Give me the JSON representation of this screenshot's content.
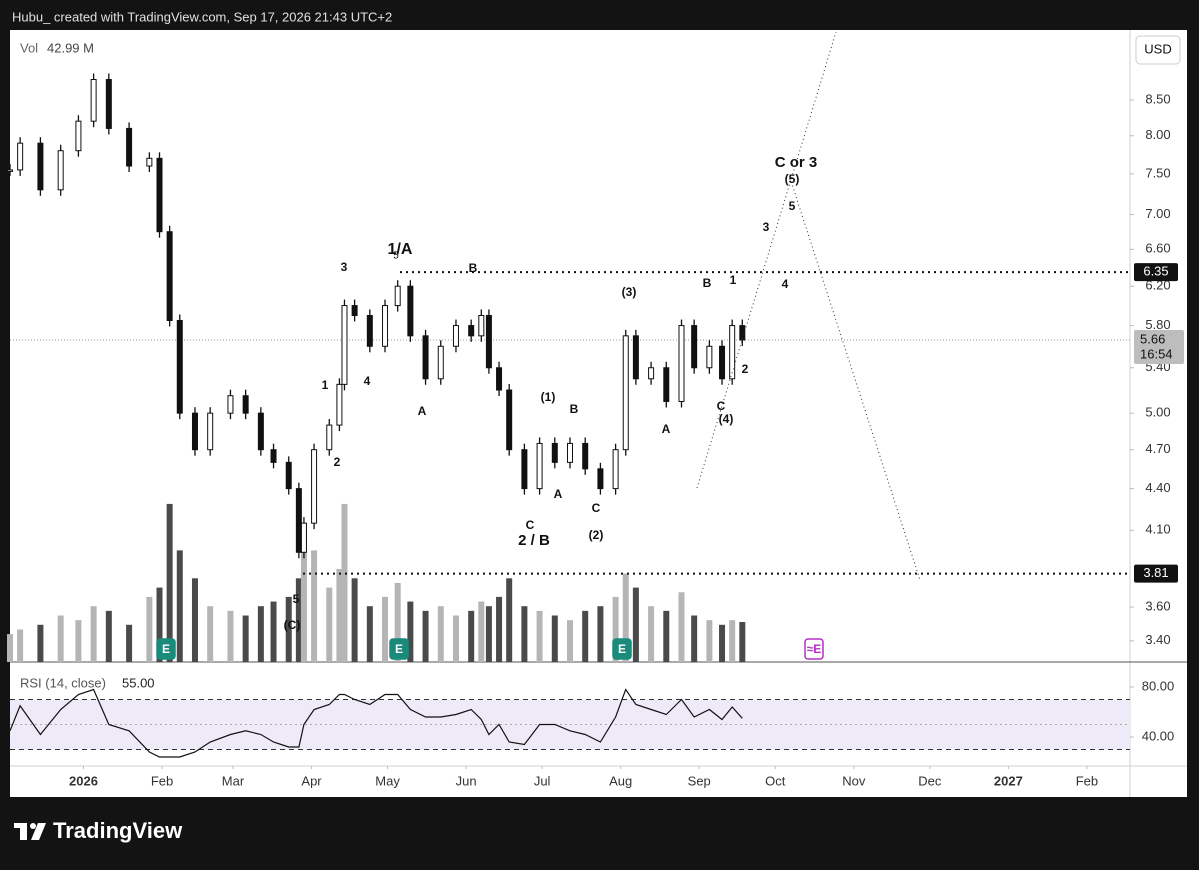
{
  "header": {
    "text": "Hubu_ created with TradingView.com, Sep 17, 2026 21:43 UTC+2"
  },
  "chart_data": {
    "type": "ohlc-bars",
    "currency": "USD",
    "x": [
      -29,
      -25,
      -17,
      -9,
      -2,
      4,
      10,
      18,
      26,
      30,
      34,
      38,
      44,
      50,
      58,
      64,
      70,
      75,
      81,
      85,
      87,
      91,
      97,
      101,
      103,
      107,
      113,
      119,
      124,
      129,
      135,
      141,
      147,
      153,
      157,
      160,
      164,
      168,
      174,
      180,
      186,
      192,
      198,
      204,
      210,
      214,
      218,
      224,
      230,
      236,
      241,
      247,
      252,
      256,
      260
    ],
    "close": [
      7.55,
      7.9,
      7.3,
      7.8,
      8.2,
      8.8,
      8.1,
      7.6,
      7.7,
      6.8,
      5.85,
      5.0,
      4.7,
      5.0,
      5.15,
      5.0,
      4.7,
      4.6,
      4.4,
      3.95,
      4.15,
      4.7,
      4.9,
      5.25,
      6.0,
      5.9,
      5.6,
      6.0,
      6.2,
      5.7,
      5.3,
      5.6,
      5.8,
      5.7,
      5.9,
      5.4,
      5.2,
      4.7,
      4.4,
      4.75,
      4.6,
      4.75,
      4.55,
      4.4,
      4.7,
      5.7,
      5.3,
      5.4,
      5.1,
      5.8,
      5.4,
      5.6,
      5.3,
      5.8,
      5.66
    ],
    "volume": [
      30,
      35,
      40,
      50,
      45,
      60,
      55,
      40,
      70,
      80,
      170,
      120,
      90,
      60,
      55,
      50,
      60,
      65,
      70,
      90,
      150,
      120,
      80,
      100,
      170,
      90,
      60,
      70,
      85,
      65,
      55,
      60,
      50,
      55,
      65,
      60,
      70,
      90,
      60,
      55,
      50,
      45,
      55,
      60,
      70,
      95,
      80,
      60,
      55,
      75,
      50,
      45,
      40,
      45,
      42.99
    ],
    "volume_label": "Vol",
    "volume_value_label": "42.99 M",
    "xlim": [
      -29,
      413
    ],
    "xticks": [
      {
        "value": 0,
        "label": "2026"
      },
      {
        "value": 31,
        "label": "Feb"
      },
      {
        "value": 59,
        "label": "Mar"
      },
      {
        "value": 90,
        "label": "Apr"
      },
      {
        "value": 120,
        "label": "May"
      },
      {
        "value": 151,
        "label": "Jun"
      },
      {
        "value": 181,
        "label": "Jul"
      },
      {
        "value": 212,
        "label": "Aug"
      },
      {
        "value": 243,
        "label": "Sep"
      },
      {
        "value": 273,
        "label": "Oct"
      },
      {
        "value": 304,
        "label": "Nov"
      },
      {
        "value": 334,
        "label": "Dec"
      },
      {
        "value": 365,
        "label": "2027"
      },
      {
        "value": 396,
        "label": "Feb"
      }
    ],
    "ylim": [
      3.28,
      9.57
    ],
    "log_scale": true,
    "yticks": [
      {
        "value": 8.5,
        "label": "8.50"
      },
      {
        "value": 8,
        "label": "8.00"
      },
      {
        "value": 7.5,
        "label": "7.50"
      },
      {
        "value": 7,
        "label": "7.00"
      },
      {
        "value": 6.6,
        "label": "6.60"
      },
      {
        "value": 6.2,
        "label": "6.20"
      },
      {
        "value": 5.8,
        "label": "5.80"
      },
      {
        "value": 5.4,
        "label": "5.40"
      },
      {
        "value": 5,
        "label": "5.00"
      },
      {
        "value": 4.7,
        "label": "4.70"
      },
      {
        "value": 4.4,
        "label": "4.40"
      },
      {
        "value": 4.1,
        "label": "4.10"
      },
      {
        "value": 3.6,
        "label": "3.60"
      },
      {
        "value": 3.4,
        "label": "3.40"
      }
    ],
    "price_levels": [
      6.35,
      3.81
    ],
    "last_price": 5.66,
    "countdown": "16:54",
    "annotations": [
      "3",
      "1/A",
      "5",
      "B",
      "1",
      "4",
      "2",
      "A",
      "5",
      "(C)",
      "(1)",
      "B",
      "A",
      "C",
      "2 / B",
      "C",
      "(2)",
      "(3)",
      "A",
      "B",
      "1",
      "2",
      "C",
      "(4)",
      "3",
      "4",
      "5",
      "(5)",
      "C or 3"
    ],
    "events": [
      "E",
      "E",
      "E",
      "≈E"
    ],
    "rsi": {
      "label": "RSI (14, close)",
      "value_label": "55.00",
      "values": [
        45,
        65,
        42,
        62,
        74,
        78,
        50,
        45,
        28,
        24,
        24,
        24,
        28,
        36,
        42,
        45,
        42,
        36,
        32,
        32,
        50,
        62,
        66,
        74,
        74,
        70,
        66,
        74,
        74,
        62,
        56,
        56,
        58,
        62,
        54,
        42,
        50,
        36,
        34,
        50,
        50,
        45,
        42,
        36,
        56,
        78,
        66,
        62,
        58,
        70,
        56,
        62,
        54,
        64,
        55
      ],
      "ylim": [
        16.8,
        100
      ],
      "yticks": [
        {
          "value": 80,
          "label": "80.00"
        },
        {
          "value": 40,
          "label": "40.00"
        }
      ],
      "bands": [
        70,
        50,
        30
      ]
    }
  },
  "footer": {
    "logo": "TradingView"
  }
}
